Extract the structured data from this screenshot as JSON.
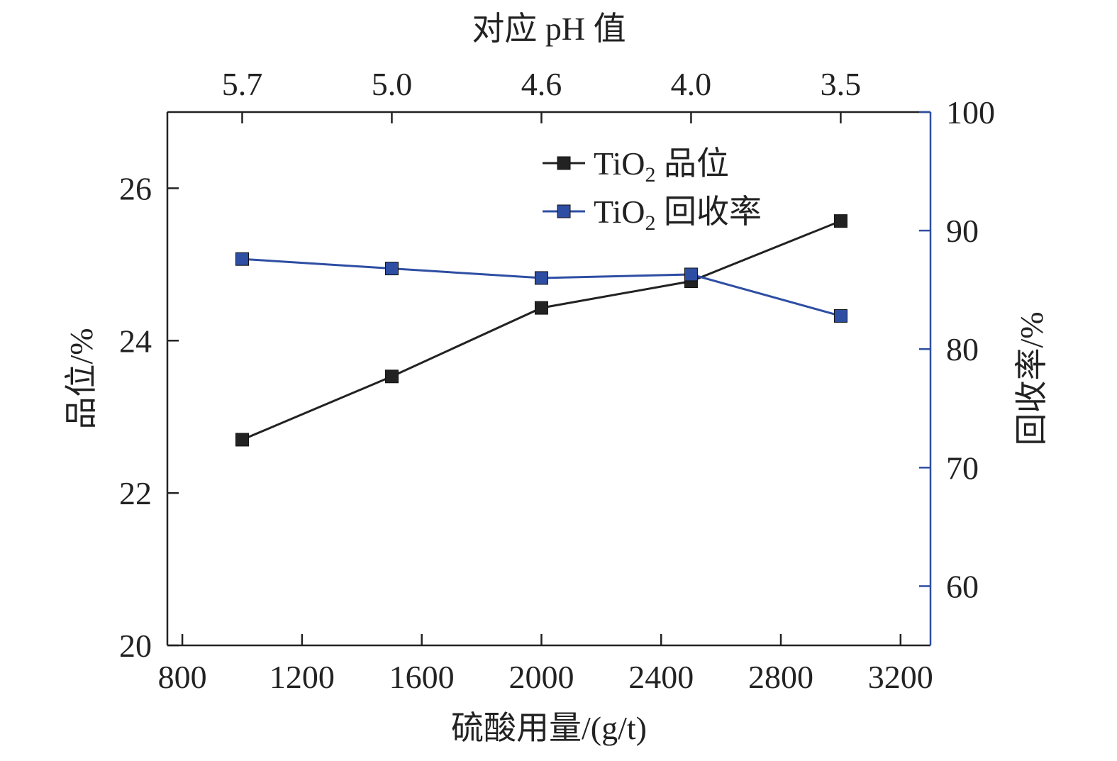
{
  "chart_data": {
    "type": "line",
    "x": [
      1000,
      1500,
      2000,
      2500,
      3000
    ],
    "xlabel": "硫酸用量/(g/t)",
    "xlim": [
      750,
      3300
    ],
    "xticks": [
      800,
      1200,
      1600,
      2000,
      2400,
      2800,
      3200
    ],
    "top_axis": {
      "label": "对应 pH 值",
      "tick_positions": [
        1000,
        1500,
        2000,
        2500,
        3000
      ],
      "tick_labels": [
        "5.7",
        "5.0",
        "4.6",
        "4.0",
        "3.5"
      ]
    },
    "left_axis": {
      "label": "品位/%",
      "ylim": [
        20,
        27
      ],
      "ticks": [
        20,
        22,
        24,
        26
      ]
    },
    "right_axis": {
      "label": "回收率/%",
      "ylim": [
        55,
        100
      ],
      "ticks": [
        60,
        70,
        80,
        90,
        100
      ],
      "color": "#2e4ea3"
    },
    "series": [
      {
        "name": "TiO₂ 品位",
        "legend_main": "TiO",
        "legend_sub": "2",
        "legend_suffix": " 品位",
        "axis": "left",
        "color": "#222222",
        "values": [
          22.7,
          23.53,
          24.43,
          24.78,
          25.57
        ]
      },
      {
        "name": "TiO₂ 回收率",
        "legend_main": "TiO",
        "legend_sub": "2",
        "legend_suffix": " 回收率",
        "axis": "right",
        "color": "#2e4ea3",
        "values": [
          87.6,
          86.8,
          86.0,
          86.3,
          82.8
        ]
      }
    ],
    "legend_position": "top-right",
    "grid": false
  }
}
